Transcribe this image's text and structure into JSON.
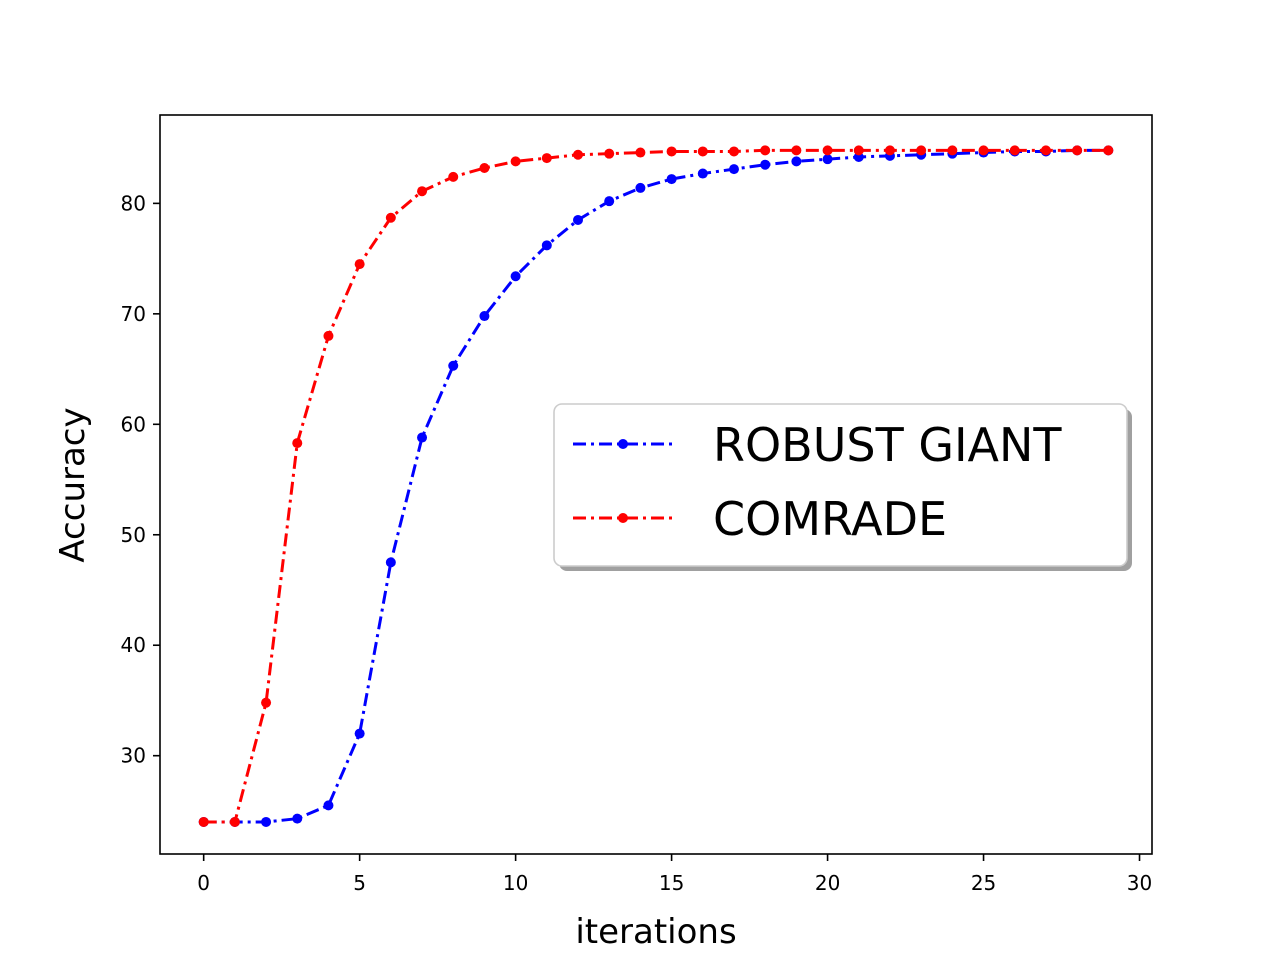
{
  "chart_data": {
    "type": "line",
    "title": "",
    "xlabel": "iterations",
    "ylabel": "Accuracy",
    "xlim": [
      -1.4,
      30.4
    ],
    "ylim": [
      21.1,
      88.0
    ],
    "x_ticks": [
      0,
      5,
      10,
      15,
      20,
      25,
      30
    ],
    "y_ticks": [
      30,
      40,
      50,
      60,
      70,
      80
    ],
    "grid": false,
    "legend_position": "center-right",
    "x": [
      0,
      1,
      2,
      3,
      4,
      5,
      6,
      7,
      8,
      9,
      10,
      11,
      12,
      13,
      14,
      15,
      16,
      17,
      18,
      19,
      20,
      21,
      22,
      23,
      24,
      25,
      26,
      27,
      28,
      29
    ],
    "series": [
      {
        "name": "ROBUST GIANT",
        "color": "#0000ff",
        "line_style": "dash-dot",
        "marker": "dot",
        "values": [
          24.0,
          24.0,
          24.0,
          24.3,
          25.5,
          32.0,
          47.5,
          58.8,
          65.3,
          69.8,
          73.4,
          76.2,
          78.5,
          80.2,
          81.4,
          82.2,
          82.7,
          83.1,
          83.5,
          83.8,
          84.0,
          84.2,
          84.3,
          84.4,
          84.5,
          84.6,
          84.7,
          84.7,
          84.8,
          84.8
        ]
      },
      {
        "name": "COMRADE",
        "color": "#ff0000",
        "line_style": "dash-dot",
        "marker": "dot",
        "values": [
          24.0,
          24.0,
          34.8,
          58.3,
          68.0,
          74.5,
          78.7,
          81.1,
          82.4,
          83.2,
          83.8,
          84.1,
          84.4,
          84.5,
          84.6,
          84.7,
          84.7,
          84.7,
          84.8,
          84.8,
          84.8,
          84.8,
          84.8,
          84.8,
          84.8,
          84.8,
          84.8,
          84.8,
          84.8,
          84.8
        ]
      }
    ]
  }
}
